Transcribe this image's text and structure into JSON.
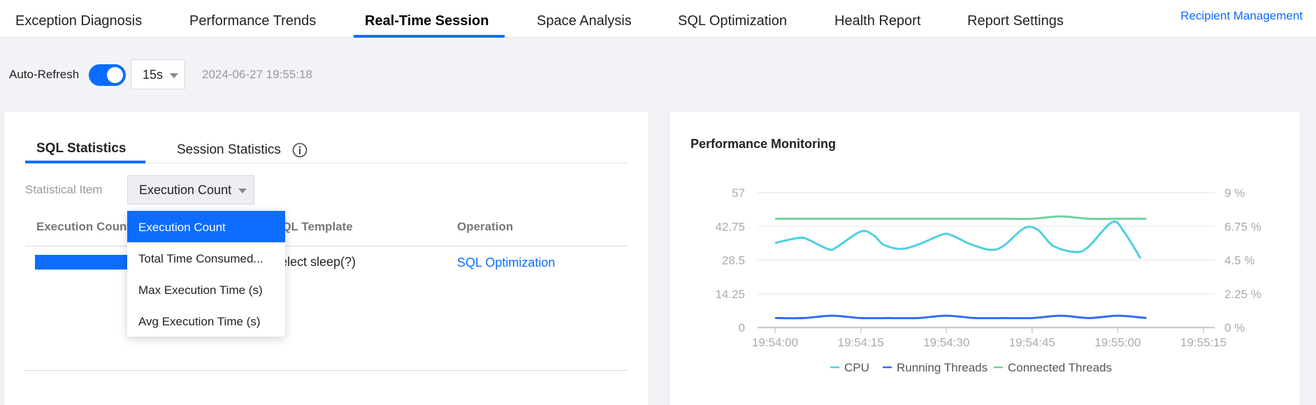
{
  "nav": {
    "tabs": [
      {
        "label": "Exception Diagnosis"
      },
      {
        "label": "Performance Trends"
      },
      {
        "label": "Real-Time Session",
        "active": true
      },
      {
        "label": "Space Analysis"
      },
      {
        "label": "SQL Optimization"
      },
      {
        "label": "Health Report"
      },
      {
        "label": "Report Settings"
      }
    ],
    "recipient": "Recipient Management"
  },
  "toolbar": {
    "auto_refresh_label": "Auto-Refresh",
    "auto_refresh_on": true,
    "interval": "15s",
    "timestamp": "2024-06-27 19:55:18"
  },
  "left": {
    "tabs": [
      "SQL Statistics",
      "Session Statistics"
    ],
    "stat_label": "Statistical Item",
    "stat_value": "Execution Count",
    "dropdown": [
      "Execution Count",
      "Total Time Consumed...",
      "Max Execution Time (s)",
      "Avg Execution Time (s)"
    ],
    "columns": [
      "Execution Count",
      "SQL Template",
      "Operation"
    ],
    "rows": [
      {
        "template": "select sleep(?)",
        "operation": "SQL Optimization"
      }
    ]
  },
  "right": {
    "title": "Performance Monitoring"
  },
  "colors": {
    "accent": "#0b6cff",
    "cpu": "#4dd0e1",
    "running": "#2f6cf6",
    "connected": "#6cd49a"
  },
  "chart_data": {
    "type": "line",
    "title": "Performance Monitoring",
    "x_ticks": [
      "19:54:00",
      "19:54:15",
      "19:54:30",
      "19:54:45",
      "19:55:00",
      "19:55:15"
    ],
    "x_range_seconds": [
      0,
      75
    ],
    "left_axis": {
      "ticks": [
        "0",
        "14.25",
        "28.5",
        "42.75",
        "57"
      ],
      "range": [
        0,
        57
      ]
    },
    "right_axis": {
      "ticks": [
        "0 %",
        "2.25 %",
        "4.5 %",
        "6.75 %",
        "9 %"
      ],
      "range": [
        0,
        9
      ]
    },
    "legend": [
      "CPU",
      "Running Threads",
      "Connected Threads"
    ],
    "legend_position": "bottom",
    "series": [
      {
        "name": "CPU",
        "axis": "right",
        "x": [
          0,
          4.3,
          6,
          9.4,
          10.8,
          15,
          17.3,
          19,
          22,
          25,
          29.3,
          31,
          34,
          37.6,
          40,
          43.6,
          46,
          48.7,
          52.6,
          54.8,
          59,
          61,
          64
        ],
        "values": [
          5.65,
          5.99,
          5.83,
          5.22,
          5.37,
          6.41,
          6.14,
          5.53,
          5.25,
          5.53,
          6.21,
          6.14,
          5.6,
          5.19,
          5.45,
          6.63,
          6.52,
          5.45,
          5.04,
          5.37,
          7.03,
          6.44,
          4.61
        ]
      },
      {
        "name": "Running Threads",
        "axis": "left",
        "x": [
          0,
          5,
          10,
          15,
          20,
          25,
          30,
          35,
          40,
          45,
          50,
          55,
          60,
          65
        ],
        "values": [
          4,
          4,
          5,
          4,
          4,
          4,
          5,
          4,
          4,
          4,
          5,
          4,
          5,
          4
        ]
      },
      {
        "name": "Connected Threads",
        "axis": "left",
        "x": [
          0,
          5,
          10,
          15,
          20,
          25,
          30,
          35,
          40,
          45,
          50,
          55,
          60,
          65
        ],
        "values": [
          46,
          46,
          46,
          46,
          46,
          46,
          46,
          46,
          46,
          46,
          47,
          46,
          46,
          46
        ]
      }
    ]
  }
}
